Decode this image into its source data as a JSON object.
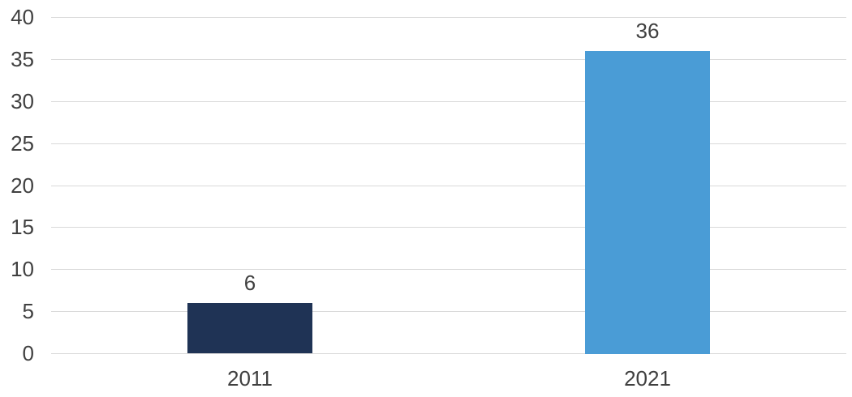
{
  "chart_data": {
    "type": "bar",
    "categories": [
      "2011",
      "2021"
    ],
    "values": [
      6,
      36
    ],
    "data_labels": [
      "6",
      "36"
    ],
    "bar_colors": [
      "#1F3355",
      "#4A9CD6"
    ],
    "y_ticks": [
      0,
      5,
      10,
      15,
      20,
      25,
      30,
      35,
      40
    ],
    "ylim": [
      0,
      40
    ],
    "grid": true,
    "legend": false,
    "title": "",
    "xlabel": "",
    "ylabel": "",
    "colors": {
      "gridline": "#D9D9D9",
      "text": "#404040",
      "background": "#FFFFFF"
    }
  }
}
